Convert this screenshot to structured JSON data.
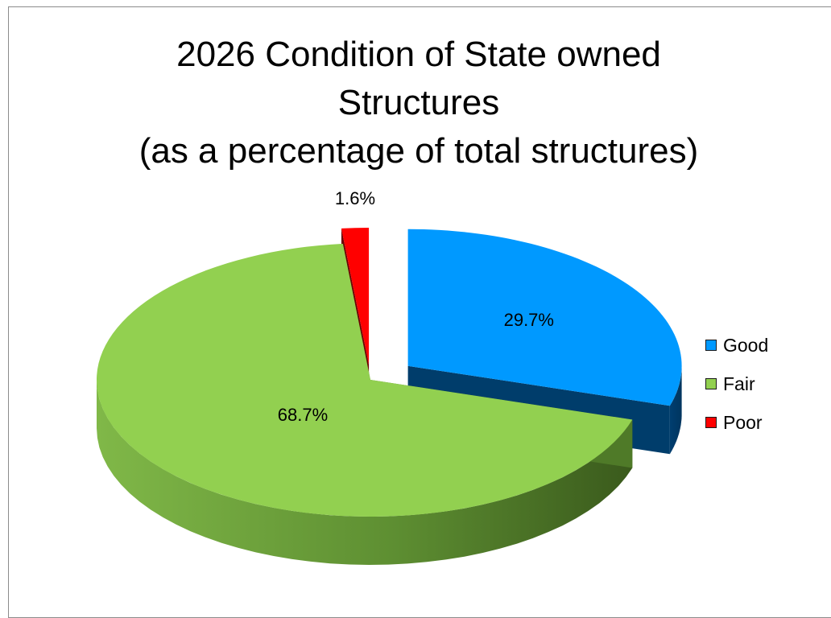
{
  "chart_data": {
    "type": "pie",
    "title_lines": [
      "2026 Condition of State owned",
      "Structures",
      "(as a percentage of total structures)"
    ],
    "series": [
      {
        "name": "Good",
        "value": 29.7,
        "label": "29.7%",
        "color": "#0099ff",
        "side_color": "#003d6b"
      },
      {
        "name": "Fair",
        "value": 68.7,
        "label": "68.7%",
        "color": "#92d050",
        "side_color": "#4f7a28"
      },
      {
        "name": "Poor",
        "value": 1.6,
        "label": "1.6%",
        "color": "#ff0000",
        "side_color": "#6b0000"
      }
    ],
    "style": "3d-exploded",
    "legend_position": "right"
  }
}
